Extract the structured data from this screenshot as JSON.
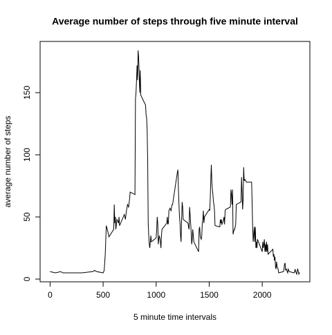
{
  "chart_data": {
    "type": "line",
    "title": "Average number of steps through five minute interval",
    "x_label": "5 minute time intervals",
    "y_label": "average number of steps",
    "color": "#000000",
    "x": [
      0,
      50,
      100,
      120,
      200,
      300,
      400,
      420,
      440,
      500,
      510,
      520,
      530,
      545,
      555,
      600,
      605,
      610,
      615,
      620,
      630,
      645,
      650,
      655,
      700,
      710,
      720,
      730,
      740,
      750,
      755,
      800,
      805,
      810,
      815,
      820,
      825,
      830,
      835,
      840,
      845,
      850,
      855,
      900,
      905,
      910,
      915,
      920,
      925,
      930,
      935,
      940,
      945,
      950,
      955,
      1000,
      1005,
      1010,
      1015,
      1020,
      1025,
      1030,
      1035,
      1040,
      1045,
      1050,
      1055,
      1100,
      1105,
      1110,
      1115,
      1120,
      1130,
      1140,
      1145,
      1150,
      1155,
      1200,
      1205,
      1210,
      1215,
      1220,
      1225,
      1230,
      1235,
      1240,
      1245,
      1250,
      1255,
      1300,
      1305,
      1310,
      1315,
      1320,
      1325,
      1330,
      1335,
      1340,
      1345,
      1350,
      1355,
      1400,
      1405,
      1410,
      1415,
      1420,
      1425,
      1430,
      1435,
      1440,
      1445,
      1450,
      1455,
      1500,
      1505,
      1510,
      1515,
      1520,
      1525,
      1530,
      1535,
      1540,
      1545,
      1550,
      1555,
      1600,
      1605,
      1610,
      1615,
      1620,
      1625,
      1630,
      1635,
      1640,
      1645,
      1650,
      1655,
      1700,
      1705,
      1710,
      1715,
      1720,
      1725,
      1730,
      1735,
      1740,
      1745,
      1750,
      1755,
      1800,
      1805,
      1810,
      1815,
      1820,
      1825,
      1830,
      1835,
      1840,
      1845,
      1850,
      1855,
      1900,
      1905,
      1910,
      1915,
      1920,
      1925,
      1930,
      1935,
      1940,
      1945,
      1950,
      1955,
      2000,
      2005,
      2010,
      2015,
      2020,
      2025,
      2030,
      2035,
      2040,
      2045,
      2050,
      2055,
      2100,
      2105,
      2110,
      2115,
      2120,
      2125,
      2130,
      2135,
      2140,
      2145,
      2150,
      2155,
      2200,
      2205,
      2210,
      2215,
      2220,
      2225,
      2230,
      2235,
      2240,
      2245,
      2250,
      2255,
      2300,
      2305,
      2310,
      2315,
      2320,
      2325,
      2330,
      2335,
      2340,
      2345,
      2350,
      2355
    ],
    "values": [
      6,
      5,
      6,
      5,
      5,
      5,
      6,
      7,
      6,
      5,
      7,
      20,
      43,
      38,
      34,
      40,
      60,
      45,
      50,
      40,
      48,
      45,
      50,
      43,
      52,
      48,
      55,
      60,
      58,
      65,
      70,
      68,
      145,
      150,
      160,
      172,
      160,
      184,
      178,
      165,
      150,
      168,
      148,
      140,
      132,
      130,
      120,
      95,
      45,
      35,
      28,
      25,
      30,
      35,
      30,
      33,
      40,
      50,
      45,
      28,
      32,
      35,
      33,
      30,
      25,
      35,
      40,
      45,
      50,
      44,
      45,
      55,
      57,
      55,
      58,
      60,
      60,
      86,
      88,
      72,
      60,
      50,
      45,
      35,
      30,
      48,
      62,
      58,
      48,
      45,
      42,
      40,
      58,
      52,
      45,
      38,
      28,
      32,
      40,
      35,
      30,
      22,
      40,
      42,
      35,
      33,
      32,
      35,
      45,
      48,
      55,
      45,
      50,
      56,
      55,
      65,
      80,
      92,
      78,
      72,
      68,
      62,
      60,
      55,
      43,
      42,
      48,
      45,
      48,
      44,
      45,
      46,
      48,
      50,
      44,
      55,
      56,
      58,
      72,
      68,
      60,
      72,
      36,
      38,
      40,
      40,
      42,
      44,
      60,
      62,
      82,
      70,
      56,
      64,
      90,
      79,
      80,
      80,
      79,
      78,
      78,
      78,
      60,
      40,
      30,
      36,
      42,
      30,
      42,
      25,
      30,
      25,
      32,
      22,
      30,
      25,
      28,
      32,
      22,
      28,
      22,
      30,
      22,
      28,
      20,
      24,
      18,
      20,
      15,
      18,
      10,
      8,
      14,
      10,
      9,
      8,
      5,
      6,
      8,
      12,
      13,
      7,
      8,
      8,
      6,
      5,
      8,
      7,
      6,
      5,
      6,
      8,
      6,
      5,
      4,
      7,
      8,
      6,
      4,
      5,
      5
    ],
    "xlim": [
      -94,
      2449
    ],
    "ylim": [
      -2.2,
      191.2
    ],
    "xticks": [
      0,
      500,
      1000,
      1500,
      2000
    ],
    "yticks": [
      0,
      50,
      100,
      150
    ]
  }
}
